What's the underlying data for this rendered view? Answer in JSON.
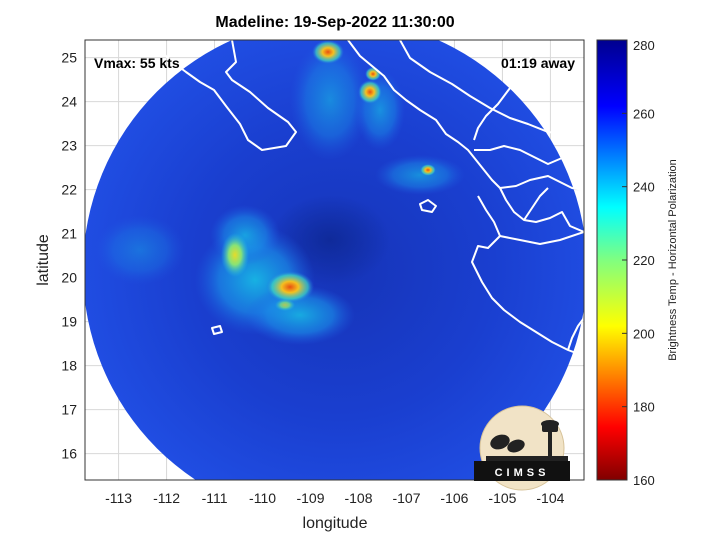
{
  "title": "Madeline: 19-Sep-2022 11:30:00",
  "overlay": {
    "vmax": "Vmax: 55 kts",
    "away": "01:19 away"
  },
  "logo_text": "CIMSS",
  "colors": {
    "ocean_warm": "#1e40d2",
    "land_white": "#ffffff"
  },
  "map": {
    "x_label": "longitude",
    "y_label": "latitude",
    "lon_range": [
      -113.7,
      -103.3
    ],
    "lat_range": [
      15.4,
      25.4
    ],
    "lon_ticks": [
      "-113",
      "-112",
      "-111",
      "-110",
      "-109",
      "-108",
      "-107",
      "-106",
      "-105",
      "-104"
    ],
    "lat_ticks": [
      "16",
      "17",
      "18",
      "19",
      "20",
      "21",
      "22",
      "23",
      "24",
      "25"
    ],
    "grid": true
  },
  "colorbar": {
    "label": "Brightness Temp - Horizontal Polarization",
    "ticks": [
      "160",
      "180",
      "200",
      "220",
      "240",
      "260",
      "280"
    ],
    "range": [
      160,
      280
    ],
    "colormap": "jet"
  }
}
